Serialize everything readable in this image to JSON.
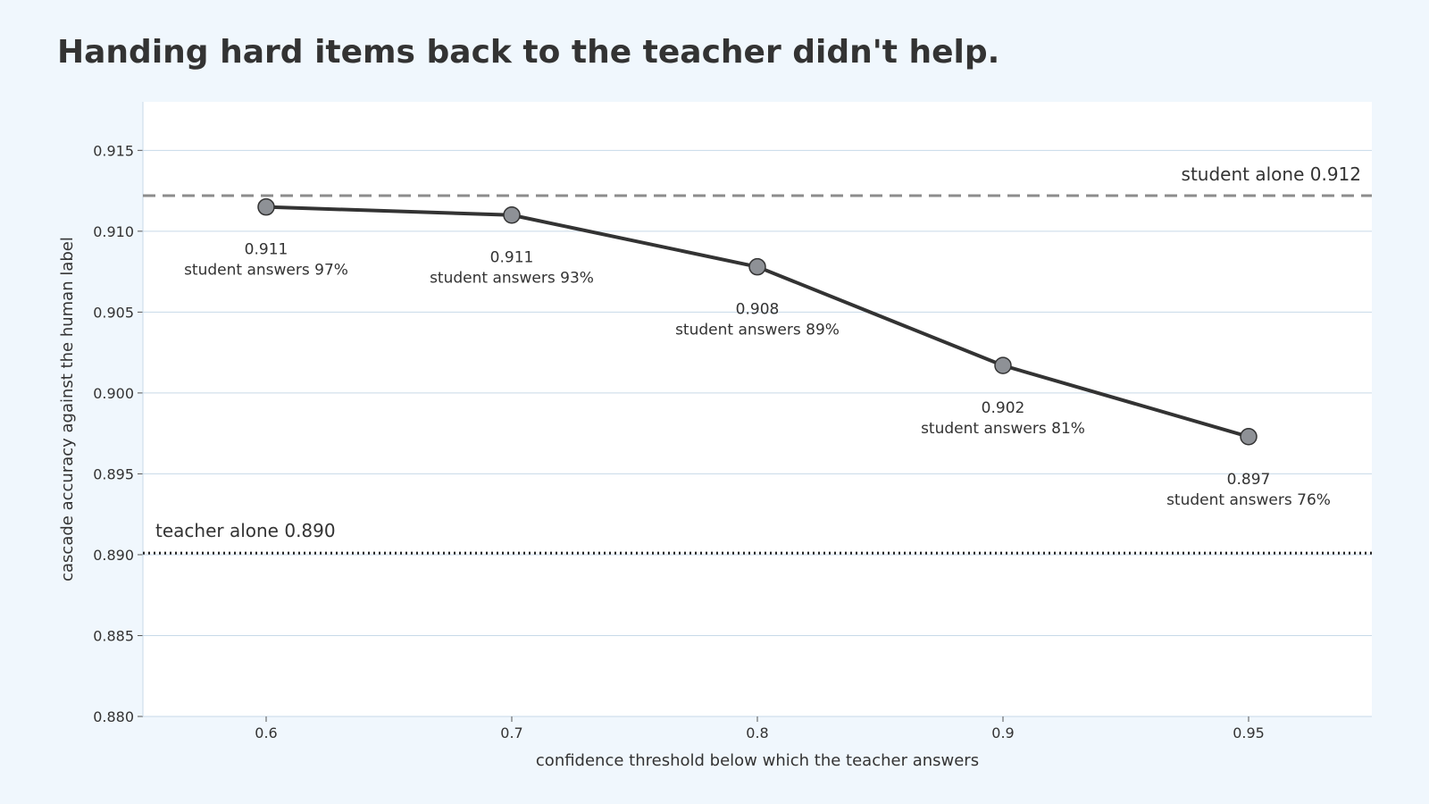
{
  "chart_data": {
    "type": "line",
    "title": "Handing hard items back to the teacher didn't help.",
    "xlabel": "confidence threshold below which the teacher answers",
    "ylabel": "cascade accuracy against the human label",
    "categories": [
      "0.6",
      "0.7",
      "0.8",
      "0.9",
      "0.95"
    ],
    "values": [
      0.9115,
      0.911,
      0.9078,
      0.9017,
      0.8973
    ],
    "value_labels": [
      "0.911",
      "0.911",
      "0.908",
      "0.902",
      "0.897"
    ],
    "student_share_labels": [
      "student answers 97%",
      "student answers 93%",
      "student answers 89%",
      "student answers 81%",
      "student answers 76%"
    ],
    "ylim": [
      0.88,
      0.918
    ],
    "yticks": [
      0.88,
      0.885,
      0.89,
      0.895,
      0.9,
      0.905,
      0.91,
      0.915
    ],
    "ytick_labels": [
      "0.880",
      "0.885",
      "0.890",
      "0.895",
      "0.900",
      "0.905",
      "0.910",
      "0.915"
    ],
    "reference_lines": [
      {
        "label": "student alone 0.912",
        "value": 0.9122,
        "style": "dashed",
        "color": "#8c8c8c"
      },
      {
        "label": "teacher alone 0.890",
        "value": 0.8901,
        "style": "dotted",
        "color": "#222222"
      }
    ],
    "grid": true,
    "colors": {
      "background": "#f0f7fd",
      "plot_background": "#ffffff",
      "grid": "#c7d9e8",
      "line": "#333333",
      "marker_fill": "#8e9196",
      "text": "#333333"
    }
  }
}
